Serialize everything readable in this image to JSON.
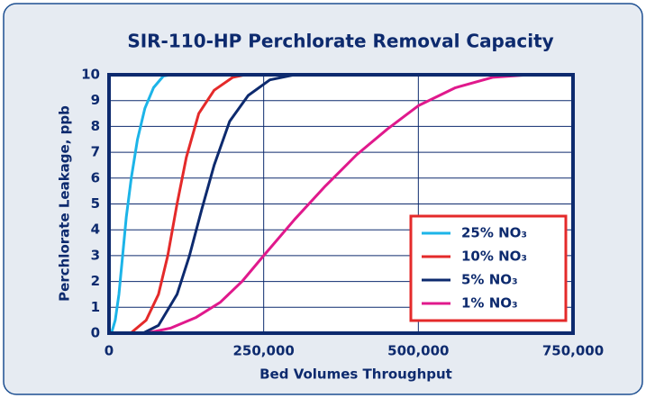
{
  "chart_data": {
    "type": "line",
    "title": "SIR-110-HP Perchlorate Removal Capacity",
    "x_label": "Bed Volumes Throughput",
    "y_label": "Perchlorate Leakage, ppb",
    "xlim": [
      0,
      750000
    ],
    "xticks": [
      0,
      {
        "value": 250000,
        "label": "250,000"
      },
      {
        "value": 500000,
        "label": "500,000"
      },
      {
        "value": 750000,
        "label": "750,000"
      }
    ],
    "ylim": [
      0,
      10
    ],
    "yticks": [
      0,
      1,
      2,
      3,
      4,
      5,
      6,
      7,
      8,
      9,
      10
    ],
    "grid": true,
    "legend": "lower right",
    "series": [
      {
        "name": "25% NO₃",
        "color": "#1cb4e8",
        "x": [
          4000,
          10000,
          16000,
          22000,
          28000,
          36000,
          46000,
          58000,
          72000,
          88000,
          100000
        ],
        "values": [
          0,
          0.5,
          1.5,
          3,
          4.5,
          6,
          7.5,
          8.7,
          9.5,
          9.95,
          10
        ]
      },
      {
        "name": "10% NO₃",
        "color": "#e42a2a",
        "x": [
          35000,
          60000,
          80000,
          95000,
          110000,
          125000,
          145000,
          170000,
          200000,
          220000
        ],
        "values": [
          0,
          0.5,
          1.5,
          3,
          5,
          6.8,
          8.5,
          9.4,
          9.9,
          10
        ]
      },
      {
        "name": "5% NO₃",
        "color": "#0d2a6e",
        "x": [
          55000,
          80000,
          110000,
          130000,
          150000,
          170000,
          195000,
          225000,
          260000,
          300000
        ],
        "values": [
          0,
          0.3,
          1.5,
          3,
          4.8,
          6.5,
          8.2,
          9.2,
          9.8,
          10
        ]
      },
      {
        "name": "1% NO₃",
        "color": "#e0198c",
        "x": [
          60000,
          100000,
          140000,
          180000,
          215000,
          250000,
          300000,
          350000,
          400000,
          450000,
          500000,
          560000,
          620000,
          680000
        ],
        "values": [
          0,
          0.2,
          0.6,
          1.2,
          2,
          3,
          4.4,
          5.7,
          6.9,
          7.9,
          8.8,
          9.5,
          9.9,
          10
        ]
      }
    ]
  }
}
